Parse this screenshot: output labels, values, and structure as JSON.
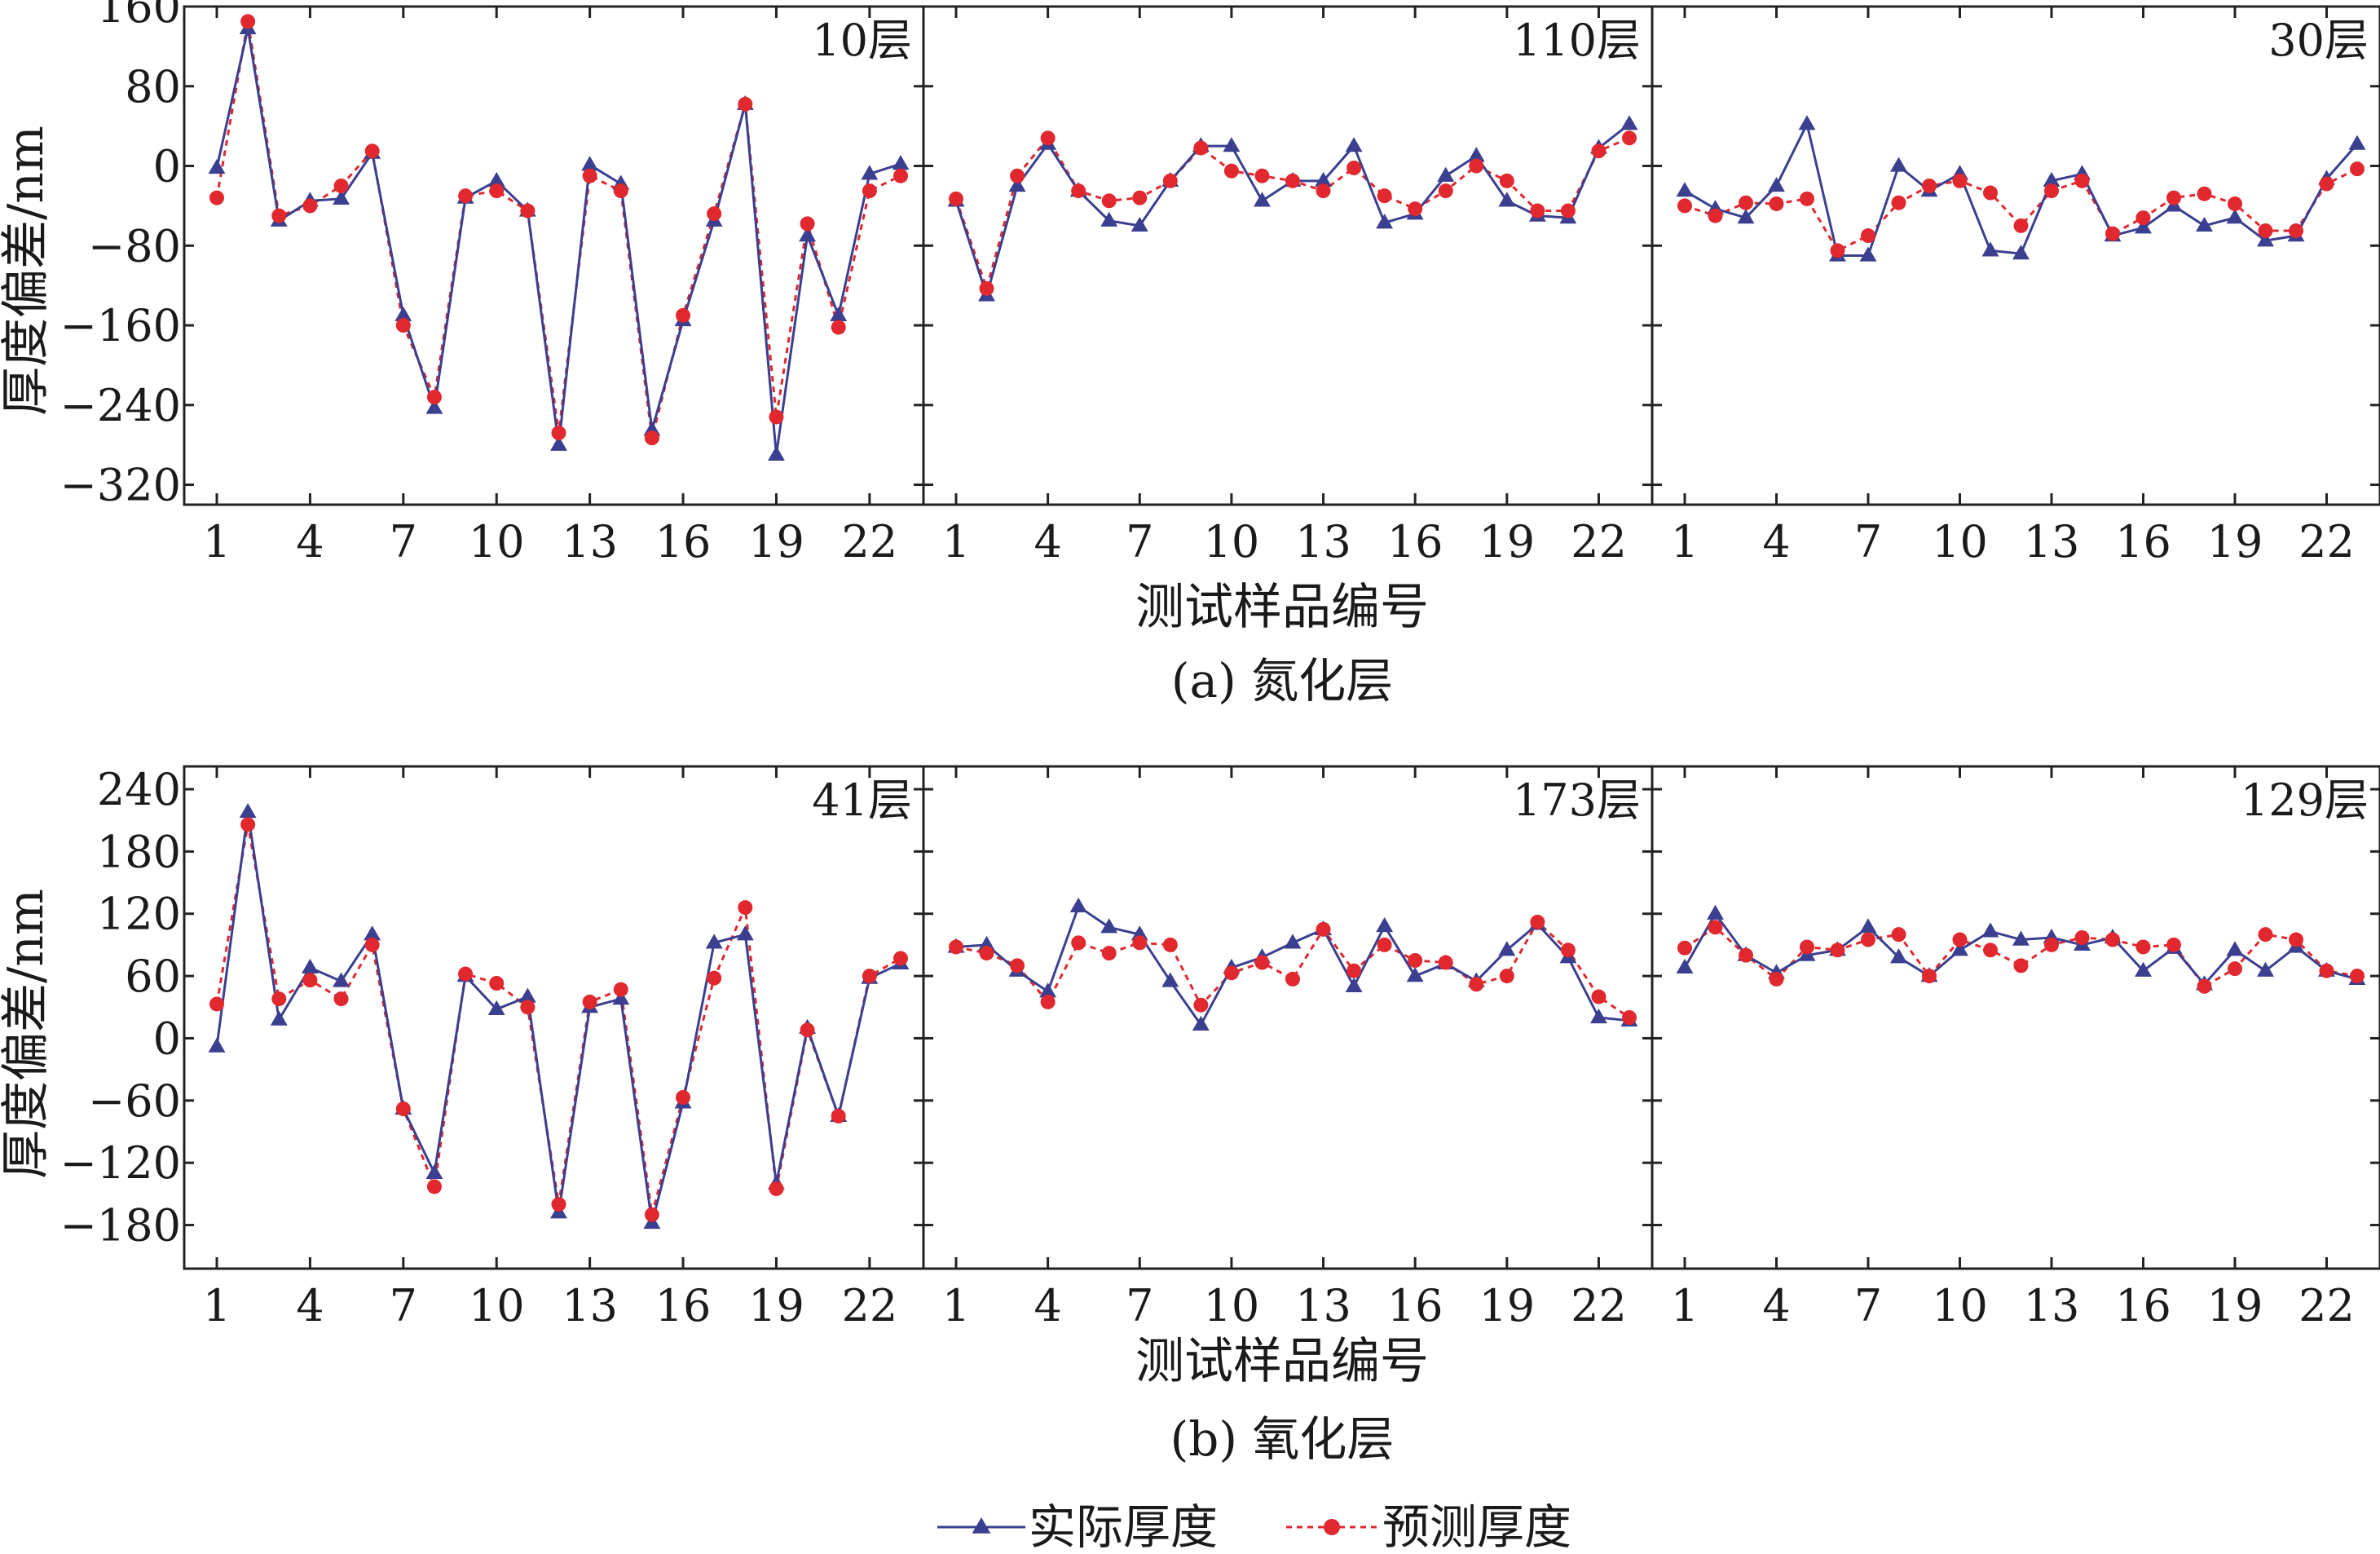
{
  "colors": {
    "actual": "#3a3f8f",
    "predicted": "#e0282e",
    "axis": "#222222"
  },
  "legend": {
    "actual_label": "实际厚度",
    "predicted_label": "预测厚度"
  },
  "rows": [
    {
      "caption": "(a) 氮化层",
      "xlabel": "测试样品编号",
      "ylabel": "厚度偏差/nm",
      "ylim": [
        -340,
        160
      ],
      "yticks": [
        160,
        80,
        0,
        -80,
        -160,
        -240,
        -320
      ],
      "ytick_labels": [
        "160",
        "80",
        "0",
        "−80",
        "−160",
        "−240",
        "−320"
      ],
      "xticks": [
        1,
        4,
        7,
        10,
        13,
        16,
        19,
        22
      ],
      "xlim": [
        0,
        24
      ],
      "panels": [
        {
          "label": "10层",
          "actual": [
            -2,
            138,
            -55,
            -35,
            -33,
            13,
            -150,
            -243,
            -32,
            -15,
            -45,
            -280,
            1,
            -18,
            -265,
            -155,
            -55,
            62,
            -290,
            -70,
            -150,
            -8,
            2
          ],
          "predicted": [
            -32,
            145,
            -50,
            -40,
            -20,
            15,
            -160,
            -232,
            -30,
            -25,
            -45,
            -268,
            -10,
            -25,
            -273,
            -150,
            -48,
            62,
            -252,
            -58,
            -162,
            -25,
            -10
          ]
        },
        {
          "label": "110层",
          "actual": [
            -35,
            -130,
            -20,
            22,
            -25,
            -55,
            -60,
            -15,
            20,
            20,
            -35,
            -15,
            -15,
            20,
            -57,
            -48,
            -10,
            10,
            -35,
            -50,
            -52,
            18,
            42
          ],
          "predicted": [
            -33,
            -123,
            -10,
            28,
            -25,
            -35,
            -32,
            -15,
            18,
            -5,
            -10,
            -15,
            -25,
            -2,
            -30,
            -43,
            -25,
            0,
            -15,
            -45,
            -45,
            15,
            28
          ]
        },
        {
          "label": "30层",
          "actual": [
            -25,
            -43,
            -52,
            -20,
            42,
            -90,
            -90,
            0,
            -25,
            -8,
            -85,
            -88,
            -15,
            -8,
            -70,
            -62,
            -40,
            -60,
            -52,
            -75,
            -70,
            -13,
            22
          ],
          "predicted": [
            -40,
            -50,
            -37,
            -38,
            -33,
            -85,
            -70,
            -37,
            -20,
            -15,
            -27,
            -60,
            -25,
            -15,
            -68,
            -52,
            -32,
            -28,
            -38,
            -65,
            -65,
            -18,
            -3
          ]
        }
      ]
    },
    {
      "caption": "(b) 氧化层",
      "xlabel": "测试样品编号",
      "ylabel": "厚度偏差/nm",
      "ylim": [
        -222,
        262
      ],
      "yticks": [
        240,
        180,
        120,
        60,
        0,
        -60,
        -120,
        -180
      ],
      "ytick_labels": [
        "240",
        "180",
        "120",
        "60",
        "0",
        "−60",
        "−120",
        "−180"
      ],
      "xticks": [
        1,
        4,
        7,
        10,
        13,
        16,
        19,
        22
      ],
      "xlim": [
        0,
        24
      ],
      "panels": [
        {
          "label": "41层",
          "actual": [
            -8,
            218,
            18,
            68,
            55,
            100,
            -68,
            -130,
            60,
            28,
            40,
            -168,
            30,
            38,
            -178,
            -62,
            92,
            100,
            -140,
            10,
            -75,
            58,
            72
          ],
          "predicted": [
            33,
            206,
            38,
            56,
            38,
            90,
            -68,
            -143,
            62,
            53,
            30,
            -160,
            35,
            47,
            -170,
            -57,
            58,
            126,
            -145,
            8,
            -75,
            60,
            77
          ]
        },
        {
          "label": "173层",
          "actual": [
            88,
            90,
            65,
            45,
            127,
            107,
            100,
            55,
            13,
            68,
            78,
            92,
            105,
            50,
            108,
            60,
            72,
            55,
            85,
            110,
            78,
            20,
            17
          ],
          "predicted": [
            88,
            82,
            70,
            35,
            92,
            82,
            92,
            90,
            32,
            63,
            73,
            57,
            105,
            65,
            90,
            75,
            73,
            52,
            60,
            112,
            85,
            40,
            20
          ]
        },
        {
          "label": "129层",
          "actual": [
            68,
            120,
            80,
            63,
            80,
            85,
            107,
            78,
            60,
            85,
            103,
            95,
            97,
            90,
            97,
            65,
            87,
            52,
            85,
            65,
            88,
            65,
            57
          ],
          "predicted": [
            87,
            107,
            80,
            57,
            88,
            85,
            95,
            100,
            60,
            95,
            85,
            70,
            90,
            97,
            95,
            88,
            90,
            50,
            67,
            100,
            95,
            65,
            60
          ]
        }
      ]
    }
  ],
  "chart_data": [
    {
      "type": "line",
      "title": "",
      "panel": "10层",
      "xlabel": "测试样品编号",
      "ylabel": "厚度偏差/nm",
      "x": [
        1,
        2,
        3,
        4,
        5,
        6,
        7,
        8,
        9,
        10,
        11,
        12,
        13,
        14,
        15,
        16,
        17,
        18,
        19,
        20,
        21,
        22,
        23
      ],
      "ylim": [
        -340,
        160
      ],
      "series": [
        {
          "name": "实际厚度",
          "values": [
            -2,
            138,
            -55,
            -35,
            -33,
            13,
            -150,
            -243,
            -32,
            -15,
            -45,
            -280,
            1,
            -18,
            -265,
            -155,
            -55,
            62,
            -290,
            -70,
            -150,
            -8,
            2
          ]
        },
        {
          "name": "预测厚度",
          "values": [
            -32,
            145,
            -50,
            -40,
            -20,
            15,
            -160,
            -232,
            -30,
            -25,
            -45,
            -268,
            -10,
            -25,
            -273,
            -150,
            -48,
            62,
            -252,
            -58,
            -162,
            -25,
            -10
          ]
        }
      ]
    },
    {
      "type": "line",
      "title": "",
      "panel": "110层",
      "xlabel": "测试样品编号",
      "ylabel": "厚度偏差/nm",
      "x": [
        1,
        2,
        3,
        4,
        5,
        6,
        7,
        8,
        9,
        10,
        11,
        12,
        13,
        14,
        15,
        16,
        17,
        18,
        19,
        20,
        21,
        22,
        23
      ],
      "ylim": [
        -340,
        160
      ],
      "series": [
        {
          "name": "实际厚度",
          "values": [
            -35,
            -130,
            -20,
            22,
            -25,
            -55,
            -60,
            -15,
            20,
            20,
            -35,
            -15,
            -15,
            20,
            -57,
            -48,
            -10,
            10,
            -35,
            -50,
            -52,
            18,
            42
          ]
        },
        {
          "name": "预测厚度",
          "values": [
            -33,
            -123,
            -10,
            28,
            -25,
            -35,
            -32,
            -15,
            18,
            -5,
            -10,
            -15,
            -25,
            -2,
            -30,
            -43,
            -25,
            0,
            -15,
            -45,
            -45,
            15,
            28
          ]
        }
      ]
    },
    {
      "type": "line",
      "title": "",
      "panel": "30层",
      "xlabel": "测试样品编号",
      "ylabel": "厚度偏差/nm",
      "x": [
        1,
        2,
        3,
        4,
        5,
        6,
        7,
        8,
        9,
        10,
        11,
        12,
        13,
        14,
        15,
        16,
        17,
        18,
        19,
        20,
        21,
        22,
        23
      ],
      "ylim": [
        -340,
        160
      ],
      "series": [
        {
          "name": "实际厚度",
          "values": [
            -25,
            -43,
            -52,
            -20,
            42,
            -90,
            -90,
            0,
            -25,
            -8,
            -85,
            -88,
            -15,
            -8,
            -70,
            -62,
            -40,
            -60,
            -52,
            -75,
            -70,
            -13,
            22
          ]
        },
        {
          "name": "预测厚度",
          "values": [
            -40,
            -50,
            -37,
            -38,
            -33,
            -85,
            -70,
            -37,
            -20,
            -15,
            -27,
            -60,
            -25,
            -15,
            -68,
            -52,
            -32,
            -28,
            -38,
            -65,
            -65,
            -18,
            -3
          ]
        }
      ]
    },
    {
      "type": "line",
      "title": "",
      "panel": "41层",
      "xlabel": "测试样品编号",
      "ylabel": "厚度偏差/nm",
      "x": [
        1,
        2,
        3,
        4,
        5,
        6,
        7,
        8,
        9,
        10,
        11,
        12,
        13,
        14,
        15,
        16,
        17,
        18,
        19,
        20,
        21,
        22,
        23
      ],
      "ylim": [
        -222,
        262
      ],
      "series": [
        {
          "name": "实际厚度",
          "values": [
            -8,
            218,
            18,
            68,
            55,
            100,
            -68,
            -130,
            60,
            28,
            40,
            -168,
            30,
            38,
            -178,
            -62,
            92,
            100,
            -140,
            10,
            -75,
            58,
            72
          ]
        },
        {
          "name": "预测厚度",
          "values": [
            33,
            206,
            38,
            56,
            38,
            90,
            -68,
            -143,
            62,
            53,
            30,
            -160,
            35,
            47,
            -170,
            -57,
            58,
            126,
            -145,
            8,
            -75,
            60,
            77
          ]
        }
      ]
    },
    {
      "type": "line",
      "title": "",
      "panel": "173层",
      "xlabel": "测试样品编号",
      "ylabel": "厚度偏差/nm",
      "x": [
        1,
        2,
        3,
        4,
        5,
        6,
        7,
        8,
        9,
        10,
        11,
        12,
        13,
        14,
        15,
        16,
        17,
        18,
        19,
        20,
        21,
        22,
        23
      ],
      "ylim": [
        -222,
        262
      ],
      "series": [
        {
          "name": "实际厚度",
          "values": [
            88,
            90,
            65,
            45,
            127,
            107,
            100,
            55,
            13,
            68,
            78,
            92,
            105,
            50,
            108,
            60,
            72,
            55,
            85,
            110,
            78,
            20,
            17
          ]
        },
        {
          "name": "预测厚度",
          "values": [
            88,
            82,
            70,
            35,
            92,
            82,
            92,
            90,
            32,
            63,
            73,
            57,
            105,
            65,
            90,
            75,
            73,
            52,
            60,
            112,
            85,
            40,
            20
          ]
        }
      ]
    },
    {
      "type": "line",
      "title": "",
      "panel": "129层",
      "xlabel": "测试样品编号",
      "ylabel": "厚度偏差/nm",
      "x": [
        1,
        2,
        3,
        4,
        5,
        6,
        7,
        8,
        9,
        10,
        11,
        12,
        13,
        14,
        15,
        16,
        17,
        18,
        19,
        20,
        21,
        22,
        23
      ],
      "ylim": [
        -222,
        262
      ],
      "series": [
        {
          "name": "实际厚度",
          "values": [
            68,
            120,
            80,
            63,
            80,
            85,
            107,
            78,
            60,
            85,
            103,
            95,
            97,
            90,
            97,
            65,
            87,
            52,
            85,
            65,
            88,
            65,
            57
          ]
        },
        {
          "name": "预测厚度",
          "values": [
            87,
            107,
            80,
            57,
            88,
            85,
            95,
            100,
            60,
            95,
            85,
            70,
            90,
            97,
            95,
            88,
            90,
            50,
            67,
            100,
            95,
            65,
            60
          ]
        }
      ]
    }
  ]
}
